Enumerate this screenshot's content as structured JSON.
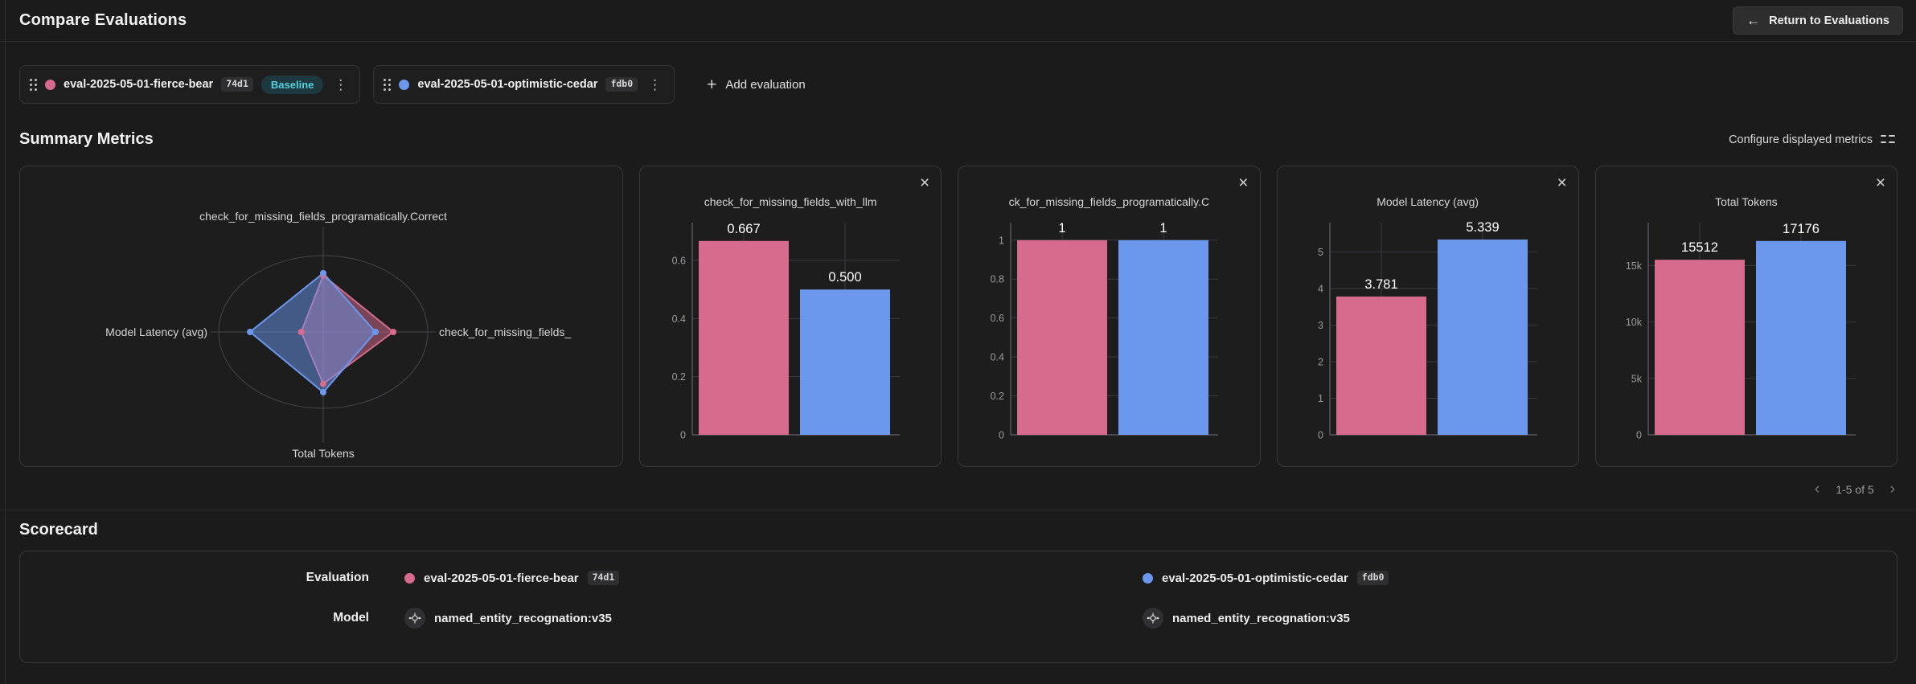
{
  "header": {
    "title": "Compare Evaluations",
    "return_button": "Return to Evaluations"
  },
  "icons": {
    "back_arrow": "←",
    "plus": "+",
    "kebab": "⋮",
    "close": "×",
    "prev_chevron": "‹",
    "next_chevron": "›"
  },
  "colors": {
    "pink": "#d66b8e",
    "blue": "#6b97ed",
    "baseline_text": "#57cfdf",
    "baseline_bg": "#1d383f"
  },
  "eval_bar": {
    "chips": [
      {
        "name": "eval-2025-05-01-fierce-bear",
        "hash": "74d1",
        "color": "#d66b8e",
        "baseline_label": "Baseline"
      },
      {
        "name": "eval-2025-05-01-optimistic-cedar",
        "hash": "fdb0",
        "color": "#6b97ed"
      }
    ],
    "add_label": "Add evaluation"
  },
  "summary": {
    "heading": "Summary Metrics",
    "configure_label": "Configure displayed metrics"
  },
  "chart_data": [
    {
      "type": "radar",
      "axes": [
        "check_for_missing_fields_programatically.Correct",
        "check_for_missing_fields_",
        "Total Tokens",
        "Model Latency (avg)"
      ],
      "series": [
        {
          "name": "eval-2025-05-01-fierce-bear",
          "color": "#d66b8e",
          "values": [
            1,
            0.667,
            15512,
            3.781
          ],
          "display_fractions": [
            0.74,
            0.67,
            0.68,
            0.21
          ]
        },
        {
          "name": "eval-2025-05-01-optimistic-cedar",
          "color": "#6b97ed",
          "values": [
            1,
            0.5,
            17176,
            5.339
          ],
          "display_fractions": [
            0.77,
            0.5,
            0.79,
            0.7
          ]
        }
      ],
      "grid": "circle-outline"
    },
    {
      "type": "bar",
      "title": "check_for_missing_fields_with_llm",
      "series": [
        {
          "name": "eval-2025-05-01-fierce-bear",
          "color": "#d66b8e",
          "value": 0.667,
          "label": "0.667"
        },
        {
          "name": "eval-2025-05-01-optimistic-cedar",
          "color": "#6b97ed",
          "value": 0.5,
          "label": "0.500"
        }
      ],
      "yticks": [
        {
          "v": 0,
          "label": "0"
        },
        {
          "v": 0.2,
          "label": "0.2"
        },
        {
          "v": 0.4,
          "label": "0.4"
        },
        {
          "v": 0.6,
          "label": "0.6"
        }
      ],
      "ymax": 0.73
    },
    {
      "type": "bar",
      "title": "ck_for_missing_fields_programatically.C",
      "series": [
        {
          "name": "eval-2025-05-01-fierce-bear",
          "color": "#d66b8e",
          "value": 1,
          "label": "1"
        },
        {
          "name": "eval-2025-05-01-optimistic-cedar",
          "color": "#6b97ed",
          "value": 1,
          "label": "1"
        }
      ],
      "yticks": [
        {
          "v": 0,
          "label": "0"
        },
        {
          "v": 0.2,
          "label": "0.2"
        },
        {
          "v": 0.4,
          "label": "0.4"
        },
        {
          "v": 0.6,
          "label": "0.6"
        },
        {
          "v": 0.8,
          "label": "0.8"
        },
        {
          "v": 1,
          "label": "1"
        }
      ],
      "ymax": 1.09
    },
    {
      "type": "bar",
      "title": "Model Latency (avg)",
      "series": [
        {
          "name": "eval-2025-05-01-fierce-bear",
          "color": "#d66b8e",
          "value": 3.781,
          "label": "3.781"
        },
        {
          "name": "eval-2025-05-01-optimistic-cedar",
          "color": "#6b97ed",
          "value": 5.339,
          "label": "5.339"
        }
      ],
      "yticks": [
        {
          "v": 0,
          "label": "0"
        },
        {
          "v": 1,
          "label": "1"
        },
        {
          "v": 2,
          "label": "2"
        },
        {
          "v": 3,
          "label": "3"
        },
        {
          "v": 4,
          "label": "4"
        },
        {
          "v": 5,
          "label": "5"
        }
      ],
      "ymax": 5.8
    },
    {
      "type": "bar",
      "title": "Total Tokens",
      "series": [
        {
          "name": "eval-2025-05-01-fierce-bear",
          "color": "#d66b8e",
          "value": 15512,
          "label": "15512"
        },
        {
          "name": "eval-2025-05-01-optimistic-cedar",
          "color": "#6b97ed",
          "value": 17176,
          "label": "17176"
        }
      ],
      "yticks": [
        {
          "v": 0,
          "label": "0"
        },
        {
          "v": 5000,
          "label": "5k"
        },
        {
          "v": 10000,
          "label": "10k"
        },
        {
          "v": 15000,
          "label": "15k"
        }
      ],
      "ymax": 18800
    }
  ],
  "pagination": {
    "label": "1-5 of 5"
  },
  "scorecard": {
    "heading": "Scorecard",
    "rows": [
      {
        "label": "Evaluation",
        "cells": [
          {
            "dot_color": "#d66b8e",
            "text": "eval-2025-05-01-fierce-bear",
            "hash": "74d1"
          },
          {
            "dot_color": "#6b97ed",
            "text": "eval-2025-05-01-optimistic-cedar",
            "hash": "fdb0"
          }
        ]
      },
      {
        "label": "Model",
        "cells": [
          {
            "icon": "model-icon",
            "text": "named_entity_recognation:v35"
          },
          {
            "icon": "model-icon",
            "text": "named_entity_recognation:v35"
          }
        ]
      }
    ]
  }
}
